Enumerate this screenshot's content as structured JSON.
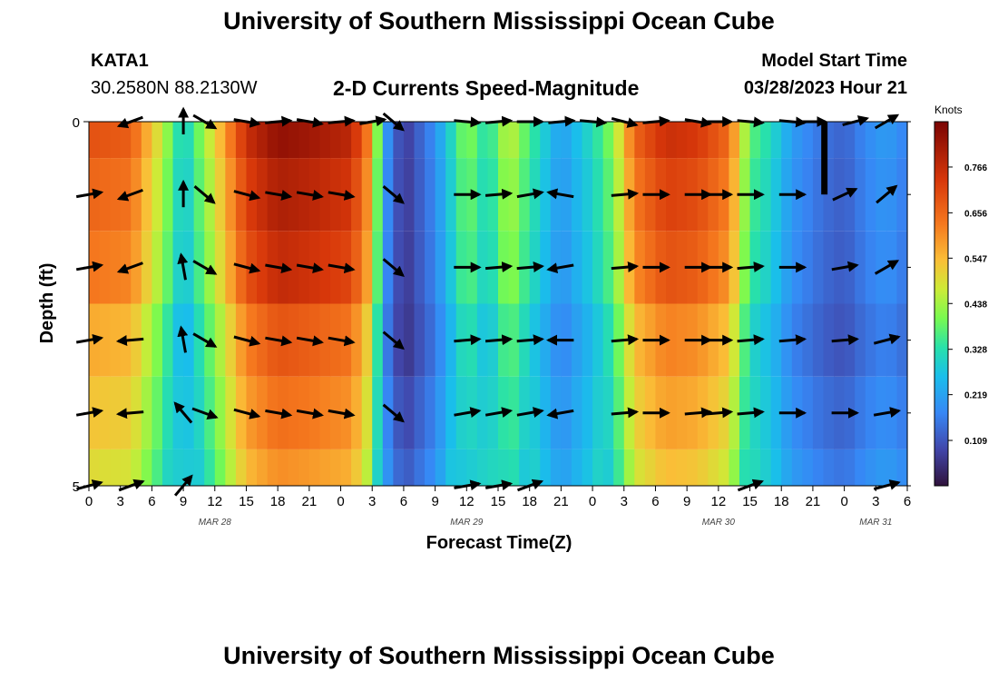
{
  "header": {
    "title": "University of Southern Mississippi Ocean Cube",
    "station_id": "KATA1",
    "station_coords": "30.2580N  88.2130W",
    "subtitle": "2-D Currents Speed-Magnitude",
    "model_start_label": "Model Start Time",
    "model_start_value": "03/28/2023 Hour 21"
  },
  "footer": {
    "title": "University of Southern Mississippi Ocean Cube"
  },
  "chart_data": {
    "type": "heatmap",
    "title": "2-D Currents Speed-Magnitude",
    "xlabel": "Forecast Time(Z)",
    "ylabel": "Depth (ft)",
    "colorbar_label": "Knots",
    "colorbar_ticks": [
      0.109,
      0.219,
      0.328,
      0.438,
      0.547,
      0.656,
      0.766
    ],
    "colorbar_range": [
      0.0,
      0.875
    ],
    "x_range_hours": [
      0,
      78
    ],
    "y_range_ft": [
      0,
      5
    ],
    "y_tick_labels": [
      "0",
      "5"
    ],
    "x_tick_labels": [
      "0",
      "3",
      "6",
      "9",
      "12",
      "15",
      "18",
      "21",
      "0",
      "3",
      "6",
      "9",
      "12",
      "15",
      "18",
      "21",
      "0",
      "3",
      "6",
      "9",
      "12",
      "15",
      "18",
      "21",
      "0",
      "3",
      "6"
    ],
    "date_labels": [
      {
        "hour": 12,
        "label": "MAR 28"
      },
      {
        "hour": 36,
        "label": "MAR 29"
      },
      {
        "hour": 60,
        "label": "MAR 30"
      },
      {
        "hour": 75,
        "label": "MAR 31"
      }
    ],
    "depth_levels_ft": [
      0,
      1,
      2,
      3,
      4,
      5
    ],
    "speed_profile": {
      "hours": [
        0,
        4,
        7,
        9,
        12,
        15,
        18,
        21,
        25,
        27,
        28,
        30,
        33,
        36,
        38,
        40,
        42,
        45,
        48,
        50,
        52,
        55,
        58,
        61,
        63,
        65,
        67,
        70,
        72,
        74,
        76,
        78
      ],
      "knots": [
        0.66,
        0.64,
        0.44,
        0.27,
        0.48,
        0.72,
        0.8,
        0.78,
        0.74,
        0.56,
        0.22,
        0.06,
        0.18,
        0.4,
        0.3,
        0.45,
        0.34,
        0.2,
        0.3,
        0.4,
        0.63,
        0.72,
        0.7,
        0.62,
        0.36,
        0.3,
        0.2,
        0.14,
        0.12,
        0.17,
        0.2,
        0.16
      ]
    },
    "depth_rows": [
      {
        "depth_ft": 0.5,
        "factor": 1.05,
        "offset": 0.0
      },
      {
        "depth_ft": 1.5,
        "factor": 1.0,
        "offset": 0.0
      },
      {
        "depth_ft": 2.5,
        "factor": 0.96,
        "offset": 0.0
      },
      {
        "depth_ft": 3.5,
        "factor": 0.86,
        "offset": 0.0
      },
      {
        "depth_ft": 4.5,
        "factor": 0.8,
        "offset": 0.03
      },
      {
        "depth_ft": 5.0,
        "factor": 0.74,
        "offset": 0.06
      }
    ],
    "vectors": [
      {
        "depth_ft": 0,
        "points": [
          [
            4,
            160
          ],
          [
            9,
            -90
          ],
          [
            11,
            30
          ],
          [
            15,
            10
          ],
          [
            18,
            -5
          ],
          [
            21,
            10
          ],
          [
            24,
            -5
          ],
          [
            27,
            -10
          ],
          [
            29,
            40
          ],
          [
            36,
            5
          ],
          [
            39,
            -5
          ],
          [
            42,
            0
          ],
          [
            45,
            -5
          ],
          [
            48,
            5
          ],
          [
            51,
            15
          ],
          [
            54,
            -5
          ],
          [
            58,
            10
          ],
          [
            60,
            0
          ],
          [
            63,
            5
          ],
          [
            67,
            5
          ],
          [
            69,
            0
          ],
          [
            73,
            -15
          ],
          [
            76,
            -30
          ]
        ]
      },
      {
        "depth_ft": 1,
        "points": [
          [
            0,
            -10
          ],
          [
            4,
            160
          ],
          [
            9,
            -90
          ],
          [
            11,
            40
          ],
          [
            15,
            15
          ],
          [
            18,
            10
          ],
          [
            21,
            10
          ],
          [
            24,
            10
          ],
          [
            29,
            40
          ],
          [
            36,
            0
          ],
          [
            39,
            -5
          ],
          [
            42,
            -10
          ],
          [
            45,
            190
          ],
          [
            51,
            -5
          ],
          [
            54,
            0
          ],
          [
            58,
            0
          ],
          [
            60,
            0
          ],
          [
            63,
            0
          ],
          [
            67,
            0
          ],
          [
            72,
            -25
          ],
          [
            76,
            -40
          ]
        ]
      },
      {
        "depth_ft": 2,
        "points": [
          [
            0,
            -10
          ],
          [
            4,
            160
          ],
          [
            9,
            -100
          ],
          [
            11,
            30
          ],
          [
            15,
            15
          ],
          [
            18,
            10
          ],
          [
            21,
            10
          ],
          [
            24,
            10
          ],
          [
            29,
            40
          ],
          [
            36,
            0
          ],
          [
            39,
            -5
          ],
          [
            42,
            -5
          ],
          [
            45,
            170
          ],
          [
            51,
            -5
          ],
          [
            54,
            0
          ],
          [
            58,
            0
          ],
          [
            60,
            0
          ],
          [
            63,
            -5
          ],
          [
            67,
            0
          ],
          [
            72,
            -10
          ],
          [
            76,
            -30
          ]
        ]
      },
      {
        "depth_ft": 3,
        "points": [
          [
            0,
            -10
          ],
          [
            4,
            175
          ],
          [
            9,
            -100
          ],
          [
            11,
            30
          ],
          [
            15,
            15
          ],
          [
            18,
            10
          ],
          [
            21,
            10
          ],
          [
            24,
            10
          ],
          [
            29,
            40
          ],
          [
            36,
            -5
          ],
          [
            39,
            -5
          ],
          [
            42,
            -5
          ],
          [
            45,
            180
          ],
          [
            51,
            -5
          ],
          [
            54,
            0
          ],
          [
            58,
            0
          ],
          [
            60,
            0
          ],
          [
            63,
            -5
          ],
          [
            67,
            -5
          ],
          [
            72,
            -5
          ],
          [
            76,
            -15
          ]
        ]
      },
      {
        "depth_ft": 4,
        "points": [
          [
            0,
            -10
          ],
          [
            4,
            175
          ],
          [
            9,
            -130
          ],
          [
            11,
            20
          ],
          [
            15,
            15
          ],
          [
            18,
            10
          ],
          [
            21,
            10
          ],
          [
            24,
            10
          ],
          [
            29,
            40
          ],
          [
            36,
            -10
          ],
          [
            39,
            -10
          ],
          [
            42,
            -10
          ],
          [
            45,
            170
          ],
          [
            51,
            -5
          ],
          [
            54,
            0
          ],
          [
            58,
            -5
          ],
          [
            60,
            -5
          ],
          [
            63,
            -5
          ],
          [
            67,
            0
          ],
          [
            72,
            0
          ],
          [
            76,
            -10
          ]
        ]
      },
      {
        "depth_ft": 5,
        "points": [
          [
            0,
            -15
          ],
          [
            4,
            -20
          ],
          [
            9,
            -50
          ],
          [
            36,
            -10
          ],
          [
            39,
            -10
          ],
          [
            42,
            -20
          ],
          [
            63,
            -20
          ],
          [
            76,
            -15
          ]
        ]
      }
    ],
    "solid_bar": {
      "hour_start": 69.8,
      "hour_end": 70.4,
      "depth_start_ft": 0,
      "depth_end_ft": 1
    }
  }
}
